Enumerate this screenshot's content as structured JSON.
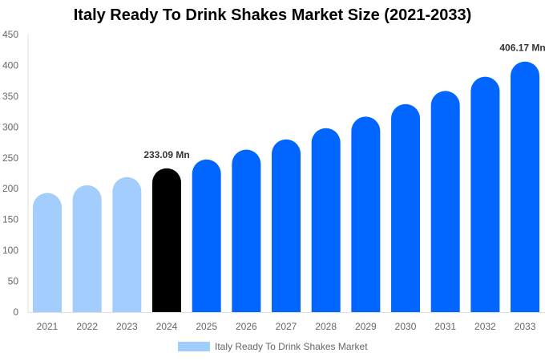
{
  "chart_data": {
    "type": "bar",
    "title": "Italy Ready To Drink Shakes Market Size (2021-2033)",
    "categories": [
      "2021",
      "2022",
      "2023",
      "2024",
      "2025",
      "2026",
      "2027",
      "2028",
      "2029",
      "2030",
      "2031",
      "2032",
      "2033"
    ],
    "series": [
      {
        "name": "Italy Ready To Drink Shakes Market",
        "values": [
          193.1,
          205.7,
          218.8,
          233.09,
          247.4,
          263.4,
          280.0,
          298.2,
          316.8,
          337.2,
          358.5,
          381.5,
          406.17
        ]
      }
    ],
    "data_labels": {
      "3": "233.09 Mn",
      "12": "406.17 Mn"
    },
    "ylim": [
      0,
      450
    ],
    "yticks": [
      0,
      50,
      100,
      150,
      200,
      250,
      300,
      350,
      400,
      450
    ],
    "grid": false,
    "legend": "bottom",
    "colors": {
      "historical": "#a3cdfd",
      "base_year": "#000000",
      "forecast": "#0066ff"
    }
  }
}
